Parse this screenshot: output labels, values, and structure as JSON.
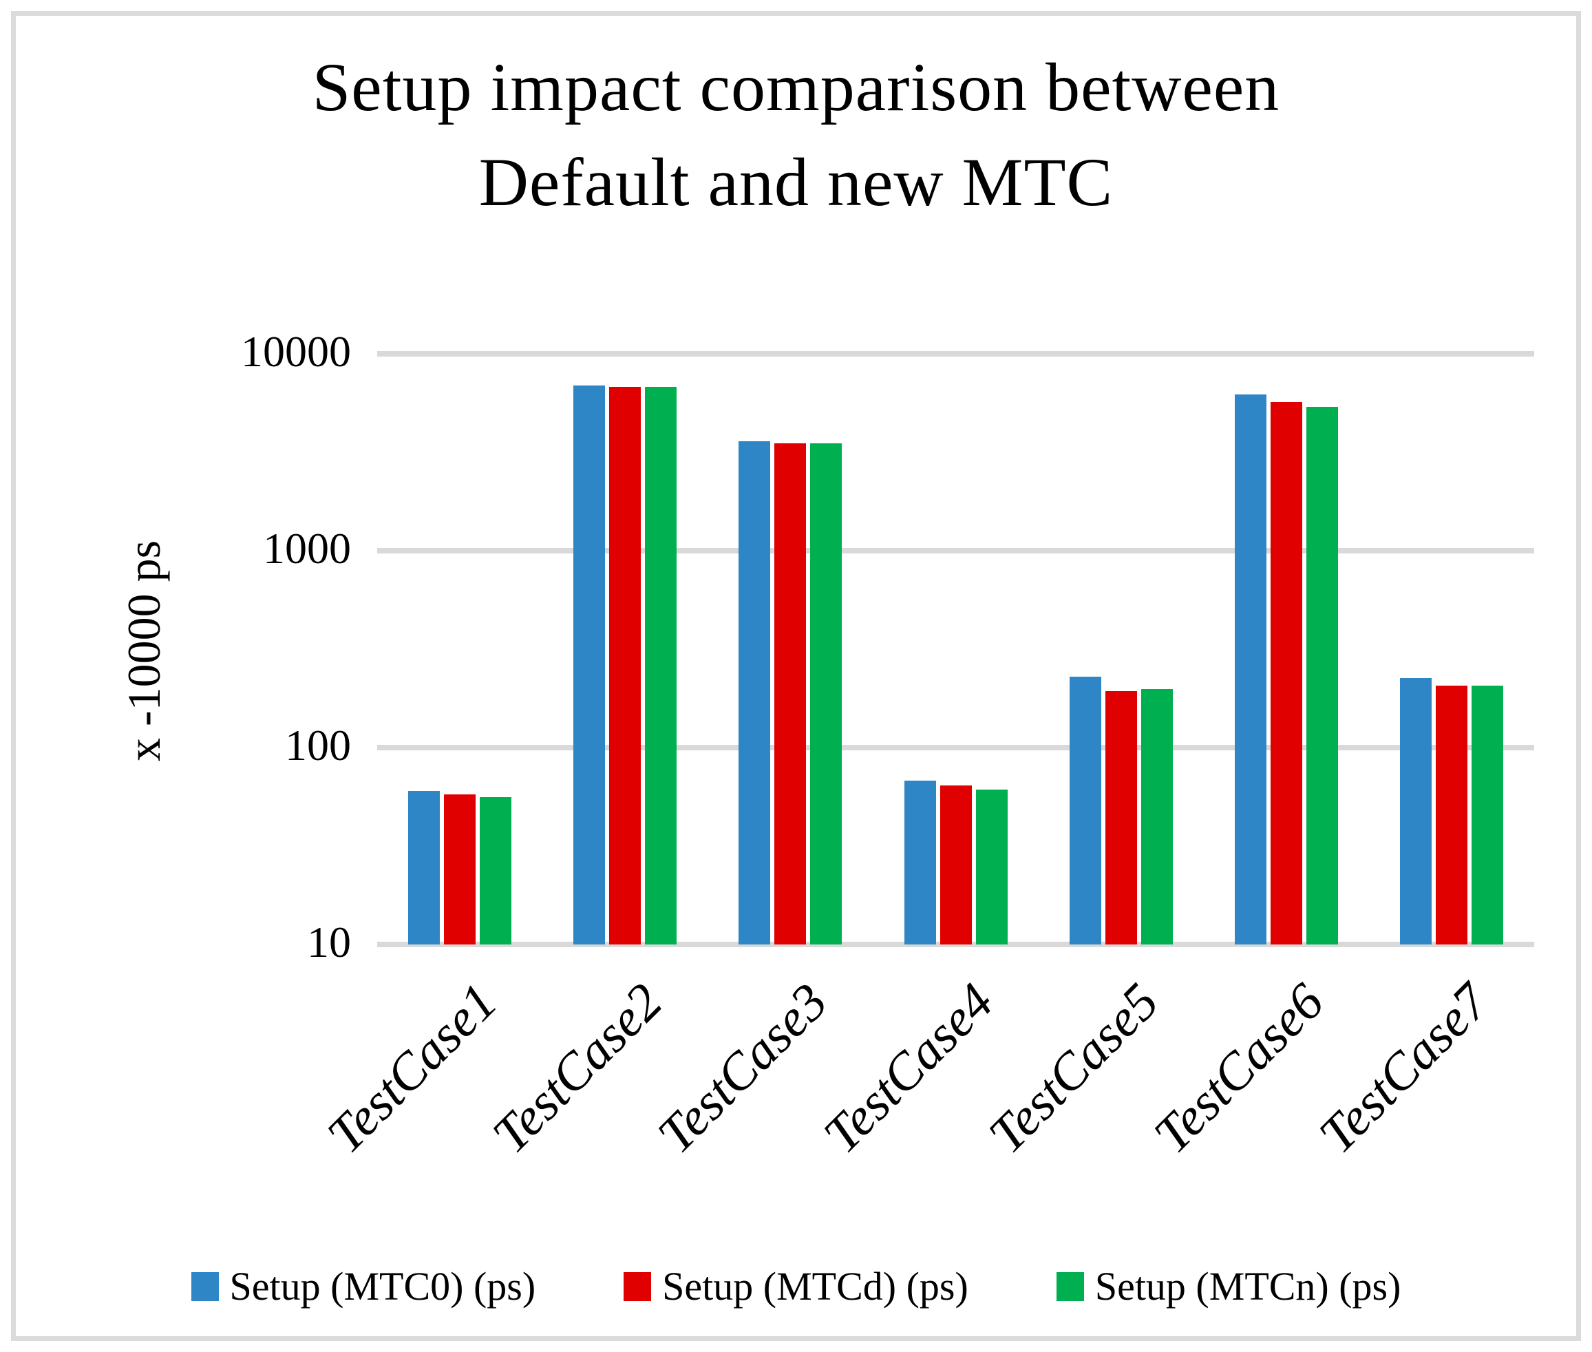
{
  "title": {
    "line1": "Setup impact comparison  between",
    "line2": "Default and new MTC"
  },
  "chart_data": {
    "type": "bar",
    "scale": "log",
    "title": "Setup impact comparison between Default and new MTC",
    "categories": [
      "TestCase1",
      "TestCase2",
      "TestCase3",
      "TestCase4",
      "TestCase5",
      "TestCase6",
      "TestCase7"
    ],
    "series": [
      {
        "name": "Setup (MTC0) (ps)",
        "color": "#2E86C6",
        "values": [
          60,
          6900,
          3600,
          68,
          230,
          6200,
          225
        ]
      },
      {
        "name": "Setup (MTCd) (ps)",
        "color": "#E00000",
        "values": [
          58,
          6800,
          3520,
          64,
          193,
          5700,
          206
        ]
      },
      {
        "name": "Setup (MTCn) (ps)",
        "color": "#00B050",
        "values": [
          56,
          6800,
          3520,
          61,
          199,
          5400,
          206
        ]
      }
    ],
    "xlabel": "",
    "ylabel": "x -10000 ps",
    "ylim": [
      10,
      10000
    ],
    "yticks": [
      10000,
      1000,
      100,
      10
    ],
    "grid": true,
    "gridline_color": "#D9D9D9",
    "legend_position": "bottom"
  },
  "colors": {
    "border": "#DBDBDB",
    "text": "#000000",
    "background": "#FFFFFF"
  }
}
